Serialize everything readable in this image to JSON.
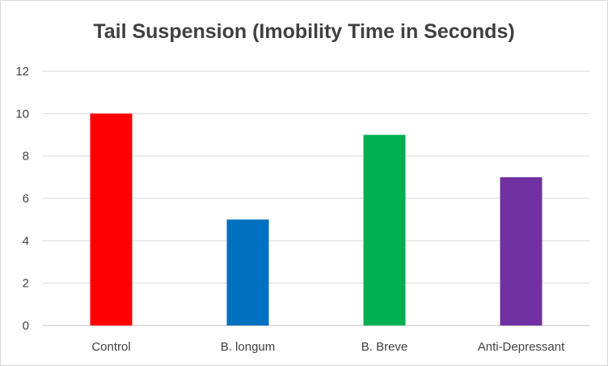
{
  "chart_data": {
    "type": "bar",
    "title": "Tail Suspension  (Imobility Time in Seconds)",
    "xlabel": "",
    "ylabel": "",
    "categories": [
      "Control",
      "B. longum",
      "B. Breve",
      "Anti-Depressant"
    ],
    "values": [
      10,
      5,
      9,
      7
    ],
    "colors": [
      "#ff0000",
      "#0070c0",
      "#00b050",
      "#7030a0"
    ],
    "ylim": [
      0,
      12
    ],
    "yticks": [
      0,
      2,
      4,
      6,
      8,
      10,
      12
    ],
    "grid": true,
    "legend": "none"
  }
}
